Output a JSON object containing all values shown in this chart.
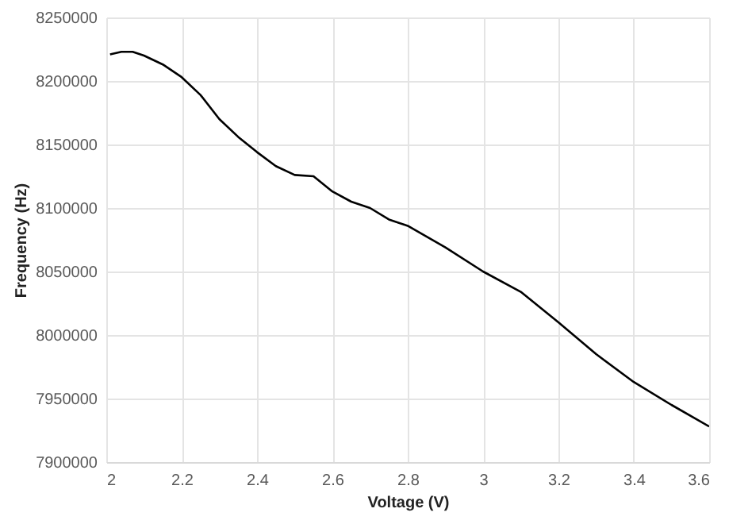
{
  "chart_data": {
    "type": "line",
    "xlabel": "Voltage (V)",
    "ylabel": "Frequency (Hz)",
    "x": [
      2.01,
      2.04,
      2.07,
      2.1,
      2.15,
      2.2,
      2.25,
      2.3,
      2.35,
      2.4,
      2.45,
      2.5,
      2.55,
      2.6,
      2.65,
      2.7,
      2.75,
      2.8,
      2.9,
      3.0,
      3.1,
      3.15,
      3.2,
      3.3,
      3.4,
      3.5,
      3.6
    ],
    "series": [
      {
        "color": "#000000",
        "values": [
          8221000,
          8223000,
          8223000,
          8220000,
          8213000,
          8203000,
          8189000,
          8170000,
          8156000,
          8144000,
          8133000,
          8126000,
          8125000,
          8113000,
          8105000,
          8100000,
          8091000,
          8086000,
          8069000,
          8050000,
          8034000,
          8022000,
          8010000,
          7985000,
          7963000,
          7945000,
          7928000
        ]
      }
    ],
    "xlim": [
      2,
      3.6
    ],
    "xticks": [
      2,
      2.2,
      2.4,
      2.6,
      2.8,
      3,
      3.2,
      3.4,
      3.6
    ],
    "ylim": [
      7900000,
      8250000
    ],
    "yticks": [
      7900000,
      7950000,
      8000000,
      8050000,
      8100000,
      8150000,
      8200000,
      8250000
    ],
    "grid": true,
    "marker": "none",
    "line_style": "solid"
  }
}
